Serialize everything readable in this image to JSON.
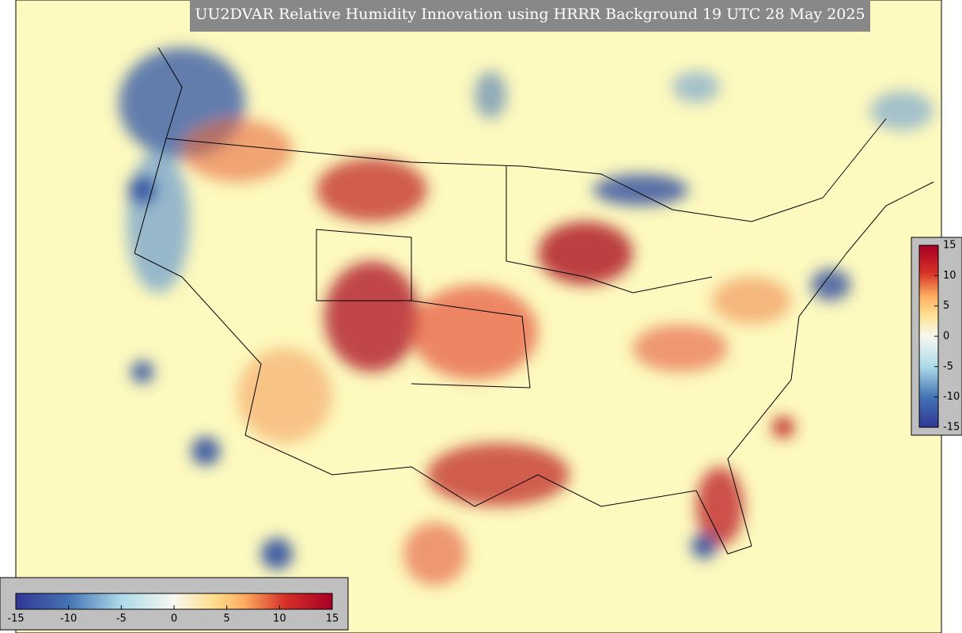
{
  "title": "UU2DVAR Relative Humidity Innovation using HRRR Background 19 UTC 28 May 2025",
  "colorbar": {
    "clim": [
      -15,
      15
    ],
    "ticks": [
      -15,
      -10,
      -5,
      0,
      5,
      10,
      15
    ]
  }
}
